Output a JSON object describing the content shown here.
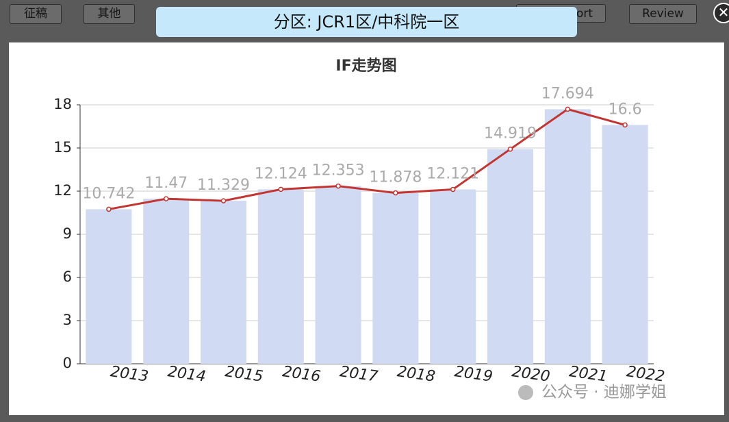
{
  "toolbar": {
    "buttons": [
      "征稿",
      "其他",
      "ort",
      "Review"
    ]
  },
  "popup": {
    "label": "分区: JCR1区/中科院一区"
  },
  "chart_data": {
    "type": "bar-line",
    "title": "IF走势图",
    "categories": [
      "2013",
      "2014",
      "2015",
      "2016",
      "2017",
      "2018",
      "2019",
      "2020",
      "2021",
      "2022"
    ],
    "series": [
      {
        "type": "bar",
        "color": "#d0daf2",
        "values": [
          10.742,
          11.47,
          11.329,
          12.124,
          12.353,
          11.878,
          12.121,
          14.919,
          17.694,
          16.6
        ]
      },
      {
        "type": "line",
        "color": "#c23531",
        "values": [
          10.742,
          11.47,
          11.329,
          12.124,
          12.353,
          11.878,
          12.121,
          14.919,
          17.694,
          16.6
        ]
      }
    ],
    "ylim": [
      0,
      18
    ],
    "yticks": [
      0,
      3,
      6,
      9,
      12,
      15,
      18
    ],
    "grid": true
  },
  "watermark": "公众号 · 迪娜学姐"
}
